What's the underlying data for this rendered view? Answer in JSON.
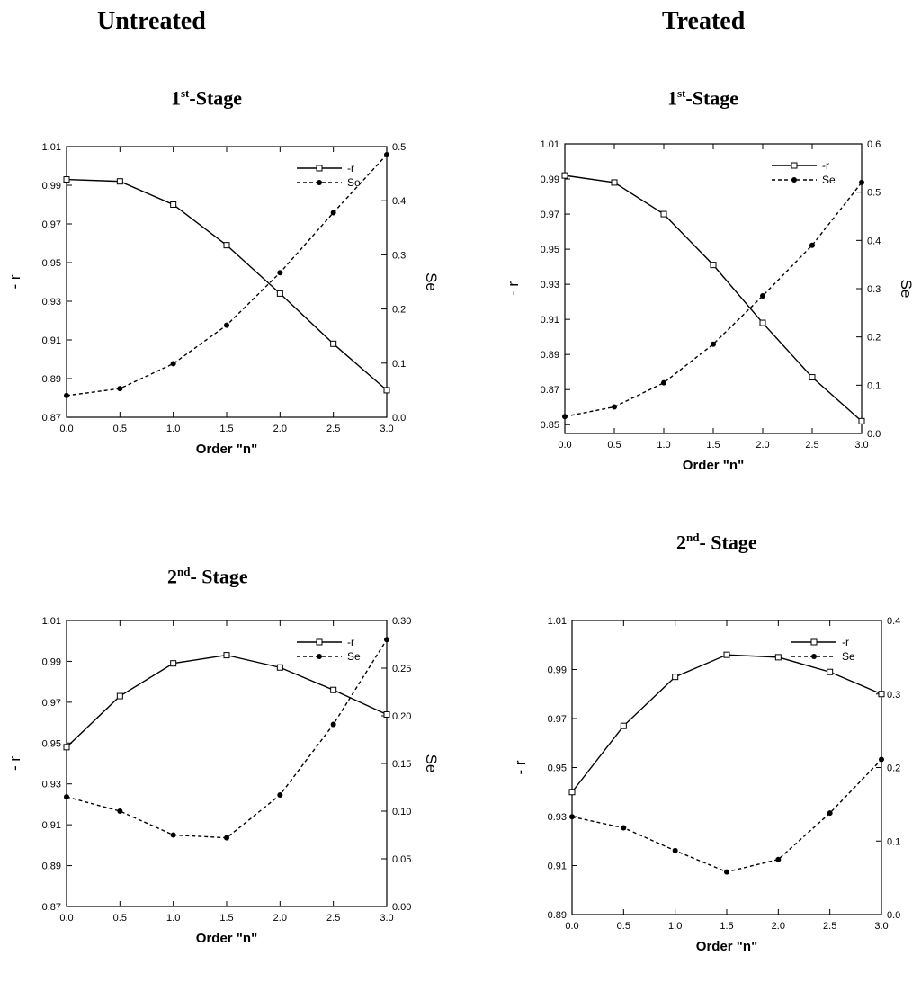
{
  "columns": {
    "left": "Untreated",
    "right": "Treated"
  },
  "chart_data": [
    {
      "type": "line",
      "stage_ordinal": "1",
      "stage_sup": "st",
      "stage_suffix": "-Stage",
      "xlabel": "Order \"n\"",
      "ylabel": "- r",
      "y2label": "Se",
      "x": [
        0.0,
        0.5,
        1.0,
        1.5,
        2.0,
        2.5,
        3.0
      ],
      "xlim": [
        0,
        3
      ],
      "xticks": [
        "0.0",
        "0.5",
        "1.0",
        "1.5",
        "2.0",
        "2.5",
        "3.0"
      ],
      "ylim": [
        0.87,
        1.01
      ],
      "yticks": [
        "0.87",
        "0.89",
        "0.91",
        "0.93",
        "0.95",
        "0.97",
        "0.99",
        "1.01"
      ],
      "y2lim": [
        0.0,
        0.5
      ],
      "y2ticks": [
        "0.0",
        "0.1",
        "0.2",
        "0.3",
        "0.4",
        "0.5"
      ],
      "legend_position": "top-right",
      "series": [
        {
          "name": "-r",
          "axis": "left",
          "marker": "square",
          "style": "solid",
          "values": [
            0.993,
            0.992,
            0.98,
            0.959,
            0.934,
            0.908,
            0.884
          ]
        },
        {
          "name": "Se",
          "axis": "right",
          "marker": "dot",
          "style": "dashed",
          "values": [
            0.04,
            0.053,
            0.099,
            0.17,
            0.267,
            0.378,
            0.485
          ]
        }
      ]
    },
    {
      "type": "line",
      "stage_ordinal": "1",
      "stage_sup": "st",
      "stage_suffix": "-Stage",
      "xlabel": "Order \"n\"",
      "ylabel": "- r",
      "y2label": "Se",
      "x": [
        0.0,
        0.5,
        1.0,
        1.5,
        2.0,
        2.5,
        3.0
      ],
      "xlim": [
        0,
        3
      ],
      "xticks": [
        "0.0",
        "0.5",
        "1.0",
        "1.5",
        "2.0",
        "2.5",
        "3.0"
      ],
      "ylim": [
        0.845,
        1.01
      ],
      "yticks": [
        "0.85",
        "0.87",
        "0.89",
        "0.91",
        "0.93",
        "0.95",
        "0.97",
        "0.99",
        "1.01"
      ],
      "y2lim": [
        0.0,
        0.6
      ],
      "y2ticks": [
        "0.0",
        "0.1",
        "0.2",
        "0.3",
        "0.4",
        "0.5",
        "0.6"
      ],
      "legend_position": "top-right",
      "series": [
        {
          "name": "-r",
          "axis": "left",
          "marker": "square",
          "style": "solid",
          "values": [
            0.992,
            0.988,
            0.97,
            0.941,
            0.908,
            0.877,
            0.852
          ]
        },
        {
          "name": "Se",
          "axis": "right",
          "marker": "dot",
          "style": "dashed",
          "values": [
            0.035,
            0.055,
            0.105,
            0.185,
            0.285,
            0.39,
            0.52
          ]
        }
      ]
    },
    {
      "type": "line",
      "stage_ordinal": "2",
      "stage_sup": "nd",
      "stage_suffix": "- Stage",
      "xlabel": "Order \"n\"",
      "ylabel": "- r",
      "y2label": "Se",
      "x": [
        0.0,
        0.5,
        1.0,
        1.5,
        2.0,
        2.5,
        3.0
      ],
      "xlim": [
        0,
        3
      ],
      "xticks": [
        "0.0",
        "0.5",
        "1.0",
        "1.5",
        "2.0",
        "2.5",
        "3.0"
      ],
      "ylim": [
        0.87,
        1.01
      ],
      "yticks": [
        "0.87",
        "0.89",
        "0.91",
        "0.93",
        "0.95",
        "0.97",
        "0.99",
        "1.01"
      ],
      "y2lim": [
        0.0,
        0.3
      ],
      "y2ticks": [
        "0.00",
        "0.05",
        "0.10",
        "0.15",
        "0.20",
        "0.25",
        "0.30"
      ],
      "legend_position": "top-right",
      "series": [
        {
          "name": "-r",
          "axis": "left",
          "marker": "square",
          "style": "solid",
          "values": [
            0.948,
            0.973,
            0.989,
            0.993,
            0.987,
            0.976,
            0.964
          ]
        },
        {
          "name": "Se",
          "axis": "right",
          "marker": "dot",
          "style": "dashed",
          "values": [
            0.115,
            0.1,
            0.075,
            0.072,
            0.117,
            0.191,
            0.28
          ]
        }
      ]
    },
    {
      "type": "line",
      "stage_ordinal": "2",
      "stage_sup": "nd",
      "stage_suffix": "- Stage",
      "xlabel": "Order \"n\"",
      "ylabel": "- r",
      "y2label": "Se",
      "x": [
        0.0,
        0.5,
        1.0,
        1.5,
        2.0,
        2.5,
        3.0
      ],
      "xlim": [
        0,
        3
      ],
      "xticks": [
        "0.0",
        "0.5",
        "1.0",
        "1.5",
        "2.0",
        "2.5",
        "3.0"
      ],
      "ylim": [
        0.89,
        1.01
      ],
      "yticks": [
        "0.89",
        "0.91",
        "0.93",
        "0.95",
        "0.97",
        "0.99",
        "1.01"
      ],
      "y2lim": [
        0.0,
        0.4
      ],
      "y2ticks": [
        "0.0",
        "0.1",
        "0.2",
        "0.3",
        "0.4"
      ],
      "legend_position": "top-right",
      "series": [
        {
          "name": "-r",
          "axis": "left",
          "marker": "square",
          "style": "solid",
          "values": [
            0.94,
            0.967,
            0.987,
            0.996,
            0.995,
            0.989,
            0.98
          ]
        },
        {
          "name": "Se",
          "axis": "right",
          "marker": "dot",
          "style": "dashed",
          "values": [
            0.133,
            0.118,
            0.087,
            0.058,
            0.075,
            0.138,
            0.211
          ]
        }
      ]
    }
  ]
}
